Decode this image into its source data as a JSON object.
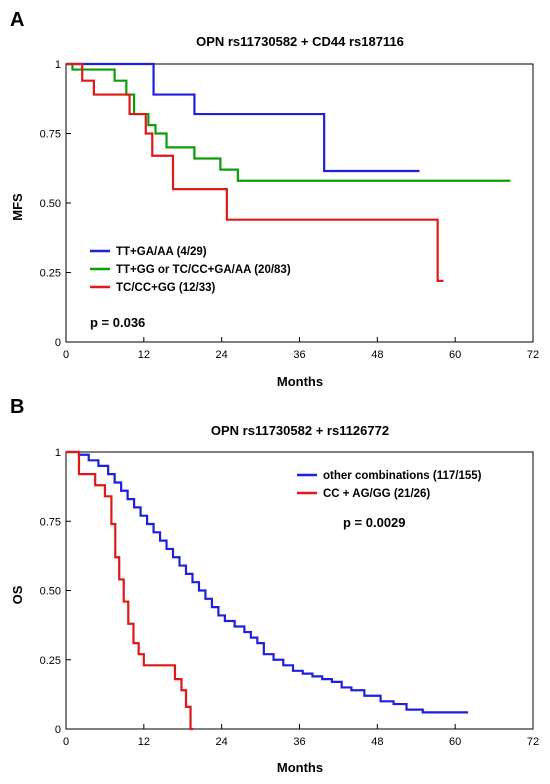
{
  "chart_data": [
    {
      "type": "line",
      "panel_label": "A",
      "title": "OPN rs11730582 + CD44 rs187116",
      "xlabel": "Months",
      "ylabel": "MFS",
      "xlim": [
        0,
        72
      ],
      "ylim": [
        0,
        1
      ],
      "x_ticks": [
        0,
        12,
        24,
        36,
        48,
        60,
        72
      ],
      "x_tick_labels": [
        "0",
        "12",
        "24",
        "36",
        "48",
        "60",
        "72"
      ],
      "y_ticks": [
        0,
        0.25,
        0.5,
        0.75,
        1
      ],
      "y_tick_labels": [
        "0",
        "0.25",
        "0.50",
        "0.75",
        "1"
      ],
      "grid": false,
      "legend_position": "bottom-left",
      "annotation": "p = 0.036",
      "series": [
        {
          "name": "TT+GA/AA (4/29)",
          "color": "#1f1fe0",
          "x": [
            0,
            13.5,
            13.5,
            19.8,
            19.8,
            39.8,
            39.8,
            54.5
          ],
          "y": [
            1.0,
            1.0,
            0.89,
            0.89,
            0.82,
            0.82,
            0.615,
            0.615
          ]
        },
        {
          "name": "TT+GG or TC/CC+GA/AA (20/83)",
          "color": "#0a9e0a",
          "x": [
            0,
            1,
            1,
            7.5,
            7.5,
            9.3,
            9.3,
            10.5,
            10.5,
            12.7,
            12.7,
            13.8,
            13.8,
            15.5,
            15.5,
            19.8,
            19.8,
            23.8,
            23.8,
            26.5,
            26.5,
            28.5,
            28.5,
            68.5
          ],
          "y": [
            1.0,
            1.0,
            0.98,
            0.98,
            0.94,
            0.94,
            0.89,
            0.89,
            0.82,
            0.82,
            0.78,
            0.78,
            0.75,
            0.75,
            0.7,
            0.7,
            0.66,
            0.66,
            0.62,
            0.62,
            0.58,
            0.58,
            0.58,
            0.58
          ]
        },
        {
          "name": "TC/CC+GG (12/33)",
          "color": "#e01818",
          "x": [
            0,
            2.5,
            2.5,
            4.3,
            4.3,
            9.8,
            9.8,
            12.3,
            12.3,
            13.3,
            13.3,
            16.5,
            16.5,
            24.8,
            24.8,
            57.3,
            57.3,
            58.2
          ],
          "y": [
            1.0,
            1.0,
            0.94,
            0.94,
            0.89,
            0.89,
            0.82,
            0.82,
            0.75,
            0.75,
            0.67,
            0.67,
            0.55,
            0.55,
            0.44,
            0.44,
            0.22,
            0.22
          ]
        }
      ]
    },
    {
      "type": "line",
      "panel_label": "B",
      "title": "OPN rs11730582 + rs1126772",
      "xlabel": "Months",
      "ylabel": "OS",
      "xlim": [
        0,
        72
      ],
      "ylim": [
        0,
        1
      ],
      "x_ticks": [
        0,
        12,
        24,
        36,
        48,
        60,
        72
      ],
      "x_tick_labels": [
        "0",
        "12",
        "24",
        "36",
        "48",
        "60",
        "72"
      ],
      "y_ticks": [
        0,
        0.25,
        0.5,
        0.75,
        1
      ],
      "y_tick_labels": [
        "0",
        "0.25",
        "0.50",
        "0.75",
        "1"
      ],
      "grid": false,
      "legend_position": "top-right",
      "annotation": "p = 0.0029",
      "series": [
        {
          "name": "other combinations (117/155)",
          "color": "#1f1fe0",
          "x": [
            0,
            2,
            3.5,
            5,
            6.5,
            7.5,
            8.5,
            9.5,
            10.5,
            11.5,
            12.5,
            13.5,
            14.5,
            15.5,
            16.5,
            17.5,
            18.5,
            19.5,
            20.5,
            21.5,
            22.5,
            23.5,
            24.5,
            26,
            27.5,
            28.5,
            29.5,
            30.5,
            32,
            33.5,
            35,
            36.5,
            38,
            39.5,
            41,
            42.5,
            44,
            46,
            48.5,
            50.5,
            52.5,
            55,
            58,
            62
          ],
          "y": [
            1.0,
            0.99,
            0.97,
            0.95,
            0.92,
            0.89,
            0.86,
            0.83,
            0.8,
            0.77,
            0.74,
            0.71,
            0.68,
            0.65,
            0.62,
            0.59,
            0.56,
            0.53,
            0.5,
            0.47,
            0.44,
            0.41,
            0.39,
            0.37,
            0.35,
            0.33,
            0.31,
            0.27,
            0.25,
            0.23,
            0.21,
            0.2,
            0.19,
            0.18,
            0.17,
            0.15,
            0.14,
            0.12,
            0.1,
            0.09,
            0.07,
            0.06,
            0.06,
            0.06
          ]
        },
        {
          "name": "CC + AG/GG (21/26)",
          "color": "#e01818",
          "x": [
            0,
            2,
            2,
            4.5,
            4.5,
            6,
            6,
            7,
            7,
            7.6,
            7.6,
            8.2,
            8.2,
            8.9,
            8.9,
            9.6,
            9.6,
            10.4,
            10.4,
            11.2,
            11.2,
            12,
            12,
            16.8,
            16.8,
            17.8,
            17.8,
            18.5,
            18.5,
            19.2,
            19.2,
            19.6
          ],
          "y": [
            1.0,
            1.0,
            0.92,
            0.92,
            0.88,
            0.88,
            0.84,
            0.84,
            0.74,
            0.74,
            0.62,
            0.62,
            0.54,
            0.54,
            0.46,
            0.46,
            0.38,
            0.38,
            0.31,
            0.31,
            0.27,
            0.27,
            0.23,
            0.23,
            0.18,
            0.18,
            0.14,
            0.14,
            0.08,
            0.08,
            0.0,
            0.0
          ]
        }
      ]
    }
  ]
}
